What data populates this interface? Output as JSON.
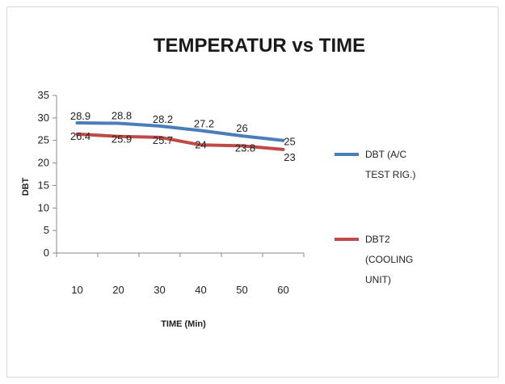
{
  "chart_data": {
    "type": "line",
    "title": "TEMPERATUR vs TIME",
    "xlabel": "TIME (Min)",
    "ylabel": "DBT",
    "categories": [
      "10",
      "20",
      "30",
      "40",
      "50",
      "60"
    ],
    "y_ticks": [
      "0",
      "5",
      "10",
      "15",
      "20",
      "25",
      "30",
      "35"
    ],
    "ylim": [
      0,
      35
    ],
    "grid": false,
    "legend_position": "right",
    "series": [
      {
        "name_lines": [
          "DBT (A/C",
          "TEST RIG.)"
        ],
        "color": "#4a7ebb",
        "values": [
          28.9,
          28.8,
          28.2,
          27.2,
          26,
          25
        ],
        "labels": [
          "28.9",
          "28.8",
          "28.2",
          "27.2",
          "26",
          "25"
        ]
      },
      {
        "name_lines": [
          "DBT2",
          "(COOLING",
          "UNIT)"
        ],
        "color": "#be4b48",
        "values": [
          26.4,
          25.9,
          25.7,
          24,
          23.8,
          23
        ],
        "labels": [
          "26.4",
          "25.9",
          "25.7",
          "24",
          "23.8",
          "23"
        ]
      }
    ]
  }
}
